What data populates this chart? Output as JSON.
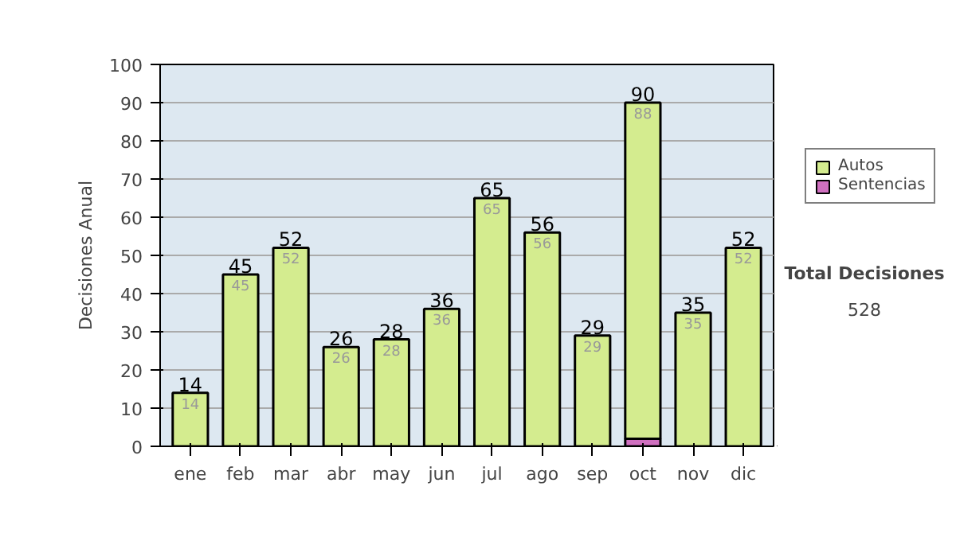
{
  "chart_data": {
    "type": "bar",
    "stacked": true,
    "ylabel": "Decisiones Anual",
    "categories": [
      "ene",
      "feb",
      "mar",
      "abr",
      "may",
      "jun",
      "jul",
      "ago",
      "sep",
      "oct",
      "nov",
      "dic"
    ],
    "series": [
      {
        "name": "Sentencias",
        "color": "#d070c0",
        "values": [
          null,
          null,
          null,
          null,
          null,
          null,
          null,
          null,
          null,
          2,
          null,
          null
        ]
      },
      {
        "name": "Autos",
        "color": "#d4ec8f",
        "values": [
          14,
          45,
          52,
          26,
          28,
          36,
          65,
          56,
          29,
          88,
          35,
          52
        ],
        "value_labels": [
          "14",
          "45",
          "52",
          "26",
          "28",
          "36",
          "65",
          "56",
          "29",
          "88",
          "35",
          "52"
        ]
      }
    ],
    "totals": [
      "14",
      "45",
      "52",
      "26",
      "28",
      "36",
      "65",
      "56",
      "29",
      "90",
      "35",
      "52"
    ],
    "ylim": [
      0,
      100
    ],
    "yticks": [
      0,
      10,
      20,
      30,
      40,
      50,
      60,
      70,
      80,
      90,
      100
    ],
    "grid": "y",
    "legend": "right",
    "annotations": [
      "Total Decisiones",
      "528"
    ]
  }
}
